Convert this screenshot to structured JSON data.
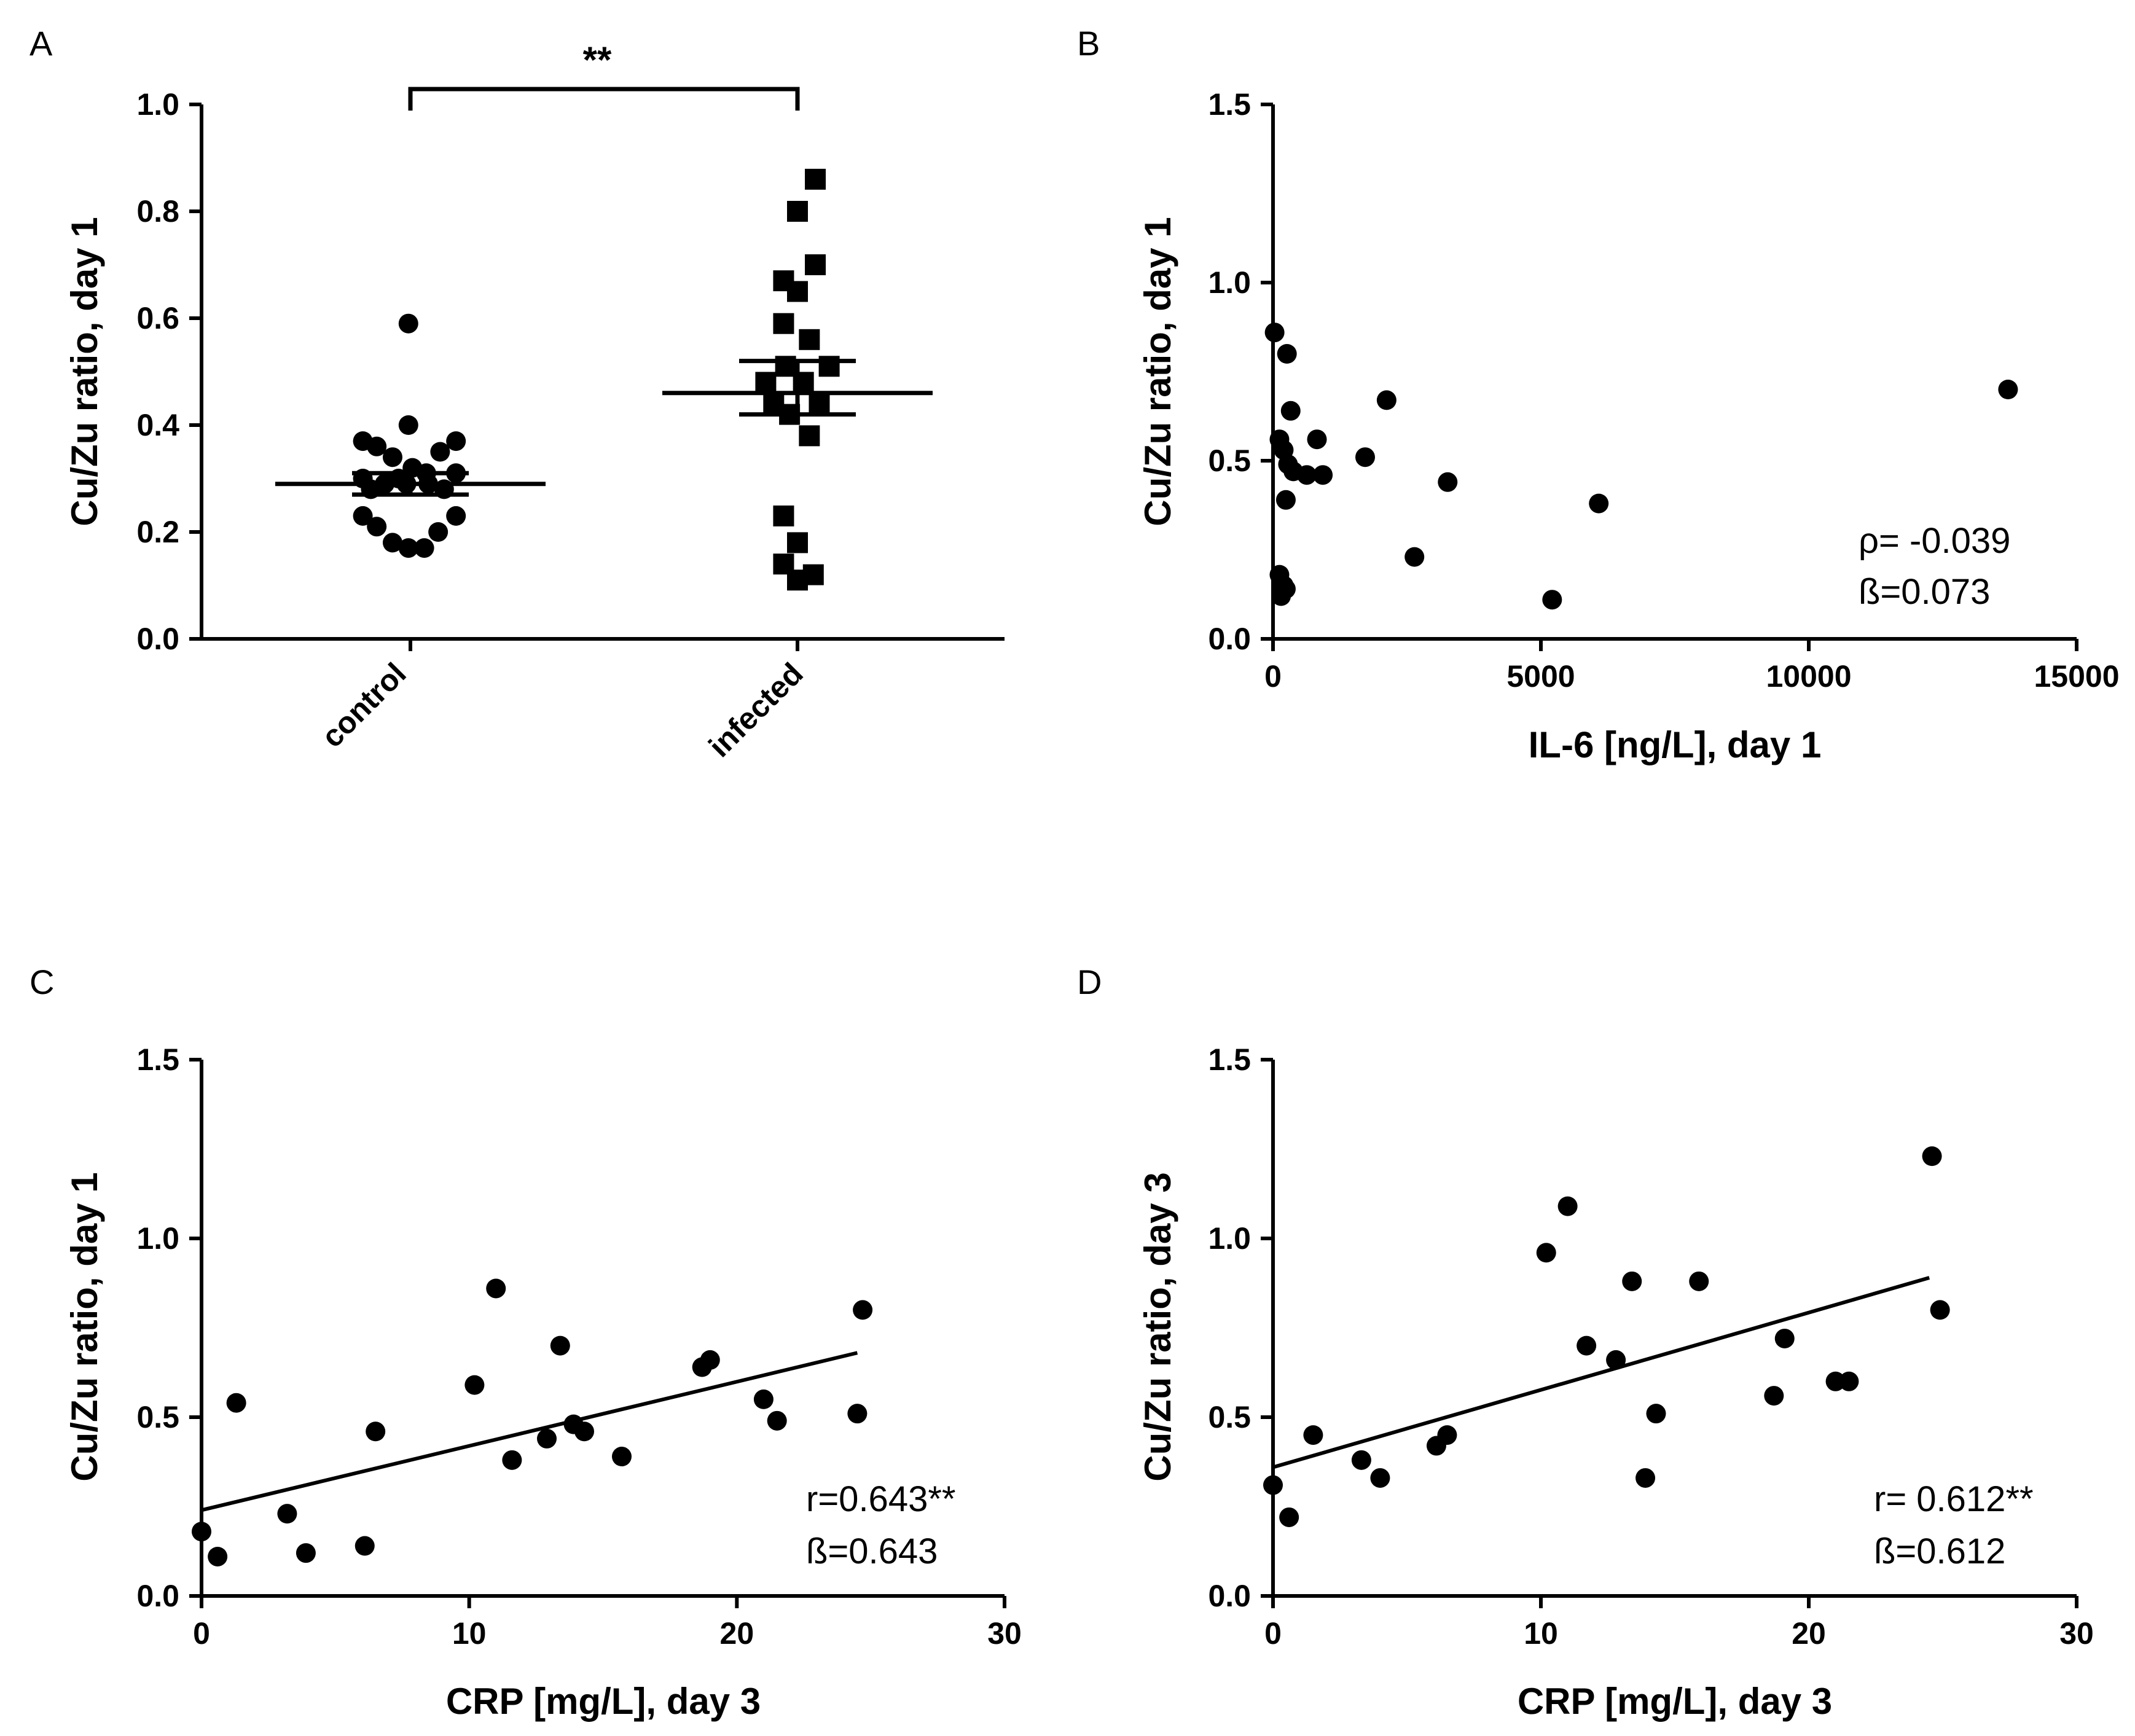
{
  "chart_data": [
    {
      "panel": "A",
      "type": "scatter",
      "ylabel": "Cu/Zu ratio, day 1",
      "ylim": [
        0,
        1.0
      ],
      "yticks": [
        "0.0",
        "0.2",
        "0.4",
        "0.6",
        "0.8",
        "1.0"
      ],
      "categories": [
        "control",
        "infected"
      ],
      "significance": "**",
      "series": [
        {
          "name": "control",
          "marker": "circle",
          "mean": 0.29,
          "error_bar": [
            0.27,
            0.31
          ],
          "points": [
            {
              "x": -0.01,
              "y": 0.59
            },
            {
              "x": -0.01,
              "y": 0.4
            },
            {
              "x": -0.24,
              "y": 0.37
            },
            {
              "x": -0.17,
              "y": 0.36
            },
            {
              "x": 0.23,
              "y": 0.37
            },
            {
              "x": -0.09,
              "y": 0.34
            },
            {
              "x": 0.15,
              "y": 0.35
            },
            {
              "x": -0.24,
              "y": 0.3
            },
            {
              "x": -0.06,
              "y": 0.3
            },
            {
              "x": 0.01,
              "y": 0.32
            },
            {
              "x": 0.08,
              "y": 0.31
            },
            {
              "x": 0.23,
              "y": 0.31
            },
            {
              "x": -0.2,
              "y": 0.28
            },
            {
              "x": -0.13,
              "y": 0.29
            },
            {
              "x": -0.02,
              "y": 0.29
            },
            {
              "x": 0.09,
              "y": 0.29
            },
            {
              "x": 0.17,
              "y": 0.28
            },
            {
              "x": -0.24,
              "y": 0.23
            },
            {
              "x": -0.17,
              "y": 0.21
            },
            {
              "x": 0.14,
              "y": 0.2
            },
            {
              "x": 0.23,
              "y": 0.23
            },
            {
              "x": -0.09,
              "y": 0.18
            },
            {
              "x": -0.01,
              "y": 0.17
            },
            {
              "x": 0.07,
              "y": 0.17
            }
          ]
        },
        {
          "name": "infected",
          "marker": "square",
          "mean": 0.46,
          "error_bar": [
            0.42,
            0.52
          ],
          "points": [
            {
              "x": 0.09,
              "y": 0.86
            },
            {
              "x": 0.0,
              "y": 0.8
            },
            {
              "x": 0.09,
              "y": 0.7
            },
            {
              "x": -0.07,
              "y": 0.67
            },
            {
              "x": 0.0,
              "y": 0.65
            },
            {
              "x": -0.07,
              "y": 0.59
            },
            {
              "x": 0.06,
              "y": 0.56
            },
            {
              "x": -0.06,
              "y": 0.51
            },
            {
              "x": 0.16,
              "y": 0.51
            },
            {
              "x": -0.16,
              "y": 0.48
            },
            {
              "x": 0.03,
              "y": 0.48
            },
            {
              "x": 0.11,
              "y": 0.44
            },
            {
              "x": -0.12,
              "y": 0.44
            },
            {
              "x": -0.04,
              "y": 0.42
            },
            {
              "x": 0.06,
              "y": 0.38
            },
            {
              "x": -0.07,
              "y": 0.23
            },
            {
              "x": 0.0,
              "y": 0.18
            },
            {
              "x": -0.07,
              "y": 0.14
            },
            {
              "x": 0.0,
              "y": 0.11
            },
            {
              "x": 0.08,
              "y": 0.12
            }
          ]
        }
      ]
    },
    {
      "panel": "B",
      "type": "scatter",
      "xlabel": "IL-6 [ng/L], day 1",
      "ylabel": "Cu/Zu ratio, day 1",
      "xlim": [
        0,
        15000
      ],
      "ylim": [
        0,
        1.5
      ],
      "xticks": [
        "0",
        "5000",
        "10000",
        "15000"
      ],
      "yticks": [
        "0.0",
        "0.5",
        "1.0",
        "1.5"
      ],
      "stats": [
        "ρ= -0.039",
        "ß=0.073"
      ],
      "points": [
        {
          "x": 30,
          "y": 0.86
        },
        {
          "x": 260,
          "y": 0.8
        },
        {
          "x": 330,
          "y": 0.64
        },
        {
          "x": 120,
          "y": 0.56
        },
        {
          "x": 200,
          "y": 0.53
        },
        {
          "x": 280,
          "y": 0.49
        },
        {
          "x": 380,
          "y": 0.47
        },
        {
          "x": 630,
          "y": 0.46
        },
        {
          "x": 930,
          "y": 0.46
        },
        {
          "x": 820,
          "y": 0.56
        },
        {
          "x": 240,
          "y": 0.39
        },
        {
          "x": 1720,
          "y": 0.51
        },
        {
          "x": 2120,
          "y": 0.67
        },
        {
          "x": 3260,
          "y": 0.44
        },
        {
          "x": 2640,
          "y": 0.23
        },
        {
          "x": 6080,
          "y": 0.38
        },
        {
          "x": 5210,
          "y": 0.11
        },
        {
          "x": 13720,
          "y": 0.7
        },
        {
          "x": 120,
          "y": 0.18
        },
        {
          "x": 200,
          "y": 0.15
        },
        {
          "x": 150,
          "y": 0.12
        },
        {
          "x": 240,
          "y": 0.14
        }
      ]
    },
    {
      "panel": "C",
      "type": "scatter",
      "xlabel": "CRP [mg/L], day 3",
      "ylabel": "Cu/Zu ratio, day 1",
      "xlim": [
        0,
        30
      ],
      "ylim": [
        0,
        1.5
      ],
      "xticks": [
        "0",
        "10",
        "20",
        "30"
      ],
      "yticks": [
        "0.0",
        "0.5",
        "1.0",
        "1.5"
      ],
      "stats": [
        "r=0.643**",
        "ß=0.643"
      ],
      "regression": {
        "x": [
          0,
          24.5
        ],
        "y": [
          0.24,
          0.68
        ]
      },
      "points": [
        {
          "x": 0.0,
          "y": 0.18
        },
        {
          "x": 0.6,
          "y": 0.11
        },
        {
          "x": 1.3,
          "y": 0.54
        },
        {
          "x": 3.2,
          "y": 0.23
        },
        {
          "x": 3.9,
          "y": 0.12
        },
        {
          "x": 6.1,
          "y": 0.14
        },
        {
          "x": 6.5,
          "y": 0.46
        },
        {
          "x": 10.2,
          "y": 0.59
        },
        {
          "x": 11.0,
          "y": 0.86
        },
        {
          "x": 11.6,
          "y": 0.38
        },
        {
          "x": 12.9,
          "y": 0.44
        },
        {
          "x": 13.4,
          "y": 0.7
        },
        {
          "x": 13.9,
          "y": 0.48
        },
        {
          "x": 14.3,
          "y": 0.46
        },
        {
          "x": 15.7,
          "y": 0.39
        },
        {
          "x": 18.7,
          "y": 0.64
        },
        {
          "x": 19.0,
          "y": 0.66
        },
        {
          "x": 21.0,
          "y": 0.55
        },
        {
          "x": 21.5,
          "y": 0.49
        },
        {
          "x": 24.5,
          "y": 0.51
        },
        {
          "x": 24.7,
          "y": 0.8
        }
      ]
    },
    {
      "panel": "D",
      "type": "scatter",
      "xlabel": "CRP [mg/L], day 3",
      "ylabel": "Cu/Zu ratio, day 3",
      "xlim": [
        0,
        30
      ],
      "ylim": [
        0,
        1.5
      ],
      "xticks": [
        "0",
        "10",
        "20",
        "30"
      ],
      "yticks": [
        "0.0",
        "0.5",
        "1.0",
        "1.5"
      ],
      "stats": [
        "r= 0.612**",
        "ß=0.612"
      ],
      "regression": {
        "x": [
          0,
          24.5
        ],
        "y": [
          0.36,
          0.89
        ]
      },
      "points": [
        {
          "x": 0.0,
          "y": 0.31
        },
        {
          "x": 0.6,
          "y": 0.22
        },
        {
          "x": 1.5,
          "y": 0.45
        },
        {
          "x": 3.3,
          "y": 0.38
        },
        {
          "x": 4.0,
          "y": 0.33
        },
        {
          "x": 6.1,
          "y": 0.42
        },
        {
          "x": 6.5,
          "y": 0.45
        },
        {
          "x": 10.2,
          "y": 0.96
        },
        {
          "x": 11.0,
          "y": 1.09
        },
        {
          "x": 11.7,
          "y": 0.7
        },
        {
          "x": 12.8,
          "y": 0.66
        },
        {
          "x": 13.4,
          "y": 0.88
        },
        {
          "x": 13.9,
          "y": 0.33
        },
        {
          "x": 14.3,
          "y": 0.51
        },
        {
          "x": 15.9,
          "y": 0.88
        },
        {
          "x": 18.7,
          "y": 0.56
        },
        {
          "x": 19.1,
          "y": 0.72
        },
        {
          "x": 21.0,
          "y": 0.6
        },
        {
          "x": 21.5,
          "y": 0.6
        },
        {
          "x": 24.6,
          "y": 1.23
        },
        {
          "x": 24.9,
          "y": 0.8
        }
      ]
    }
  ]
}
